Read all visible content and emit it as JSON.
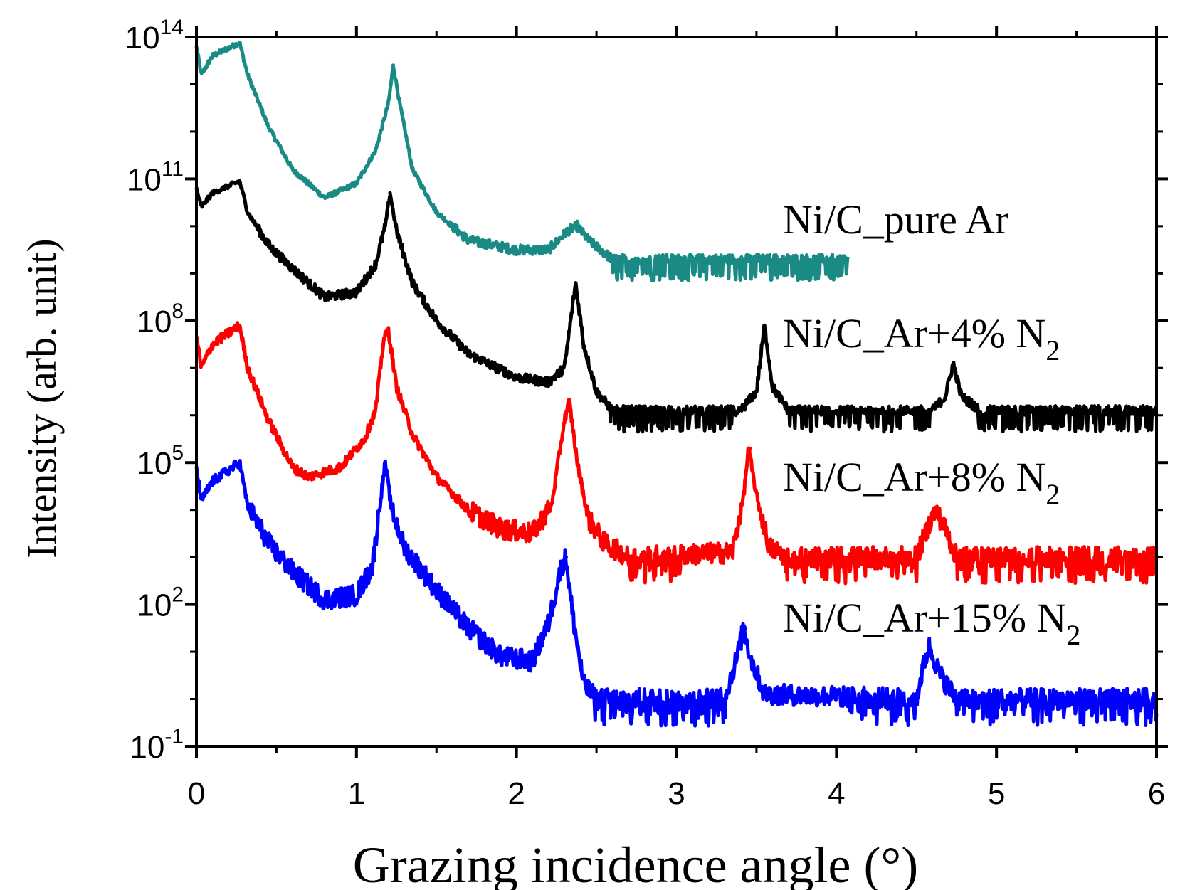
{
  "chart_data": {
    "type": "line",
    "xlabel": "Grazing incidence angle (°)",
    "ylabel": "Intensity (arb. unit)",
    "xlim": [
      0,
      6
    ],
    "ylim_log10": [
      -1,
      14
    ],
    "y_scale": "log",
    "grid": false,
    "x_ticks": [
      "0",
      "1",
      "2",
      "3",
      "4",
      "5",
      "6"
    ],
    "y_ticks": [
      {
        "base": "10",
        "exp": "14",
        "log": 14
      },
      {
        "base": "10",
        "exp": "11",
        "log": 11
      },
      {
        "base": "10",
        "exp": "8",
        "log": 8
      },
      {
        "base": "10",
        "exp": "5",
        "log": 5
      },
      {
        "base": "10",
        "exp": "2",
        "log": 2
      },
      {
        "base": "10",
        "exp": "-1",
        "log": -1
      }
    ],
    "series": [
      {
        "key": "pure-ar",
        "label_main": "Ni/C_pure Ar",
        "label_sub": "",
        "color": "#1a8a85",
        "xmax": 4.07,
        "points_log10": [
          [
            0,
            13.8
          ],
          [
            0.03,
            13.2
          ],
          [
            0.1,
            13.6
          ],
          [
            0.27,
            13.88
          ],
          [
            0.32,
            13.2
          ],
          [
            0.45,
            12.1
          ],
          [
            0.6,
            11.2
          ],
          [
            0.8,
            10.6
          ],
          [
            1.0,
            10.9
          ],
          [
            1.12,
            11.6
          ],
          [
            1.2,
            12.6
          ],
          [
            1.23,
            13.4
          ],
          [
            1.27,
            12.6
          ],
          [
            1.35,
            11.2
          ],
          [
            1.5,
            10.3
          ],
          [
            1.7,
            9.7
          ],
          [
            2.0,
            9.5
          ],
          [
            2.2,
            9.5
          ],
          [
            2.32,
            9.9
          ],
          [
            2.38,
            10.0
          ],
          [
            2.45,
            9.7
          ],
          [
            2.6,
            9.3
          ],
          [
            3.0,
            9.3
          ],
          [
            3.5,
            9.3
          ],
          [
            4.07,
            9.3
          ]
        ],
        "peaks": [
          [
            1.23,
            13.4
          ],
          [
            2.38,
            10.1
          ]
        ]
      },
      {
        "key": "ar-4-n2",
        "label_main": "Ni/C_Ar+4% N",
        "label_sub": "2",
        "color": "#000000",
        "xmax": 6.0,
        "points_log10": [
          [
            0,
            10.8
          ],
          [
            0.03,
            10.4
          ],
          [
            0.1,
            10.7
          ],
          [
            0.27,
            10.95
          ],
          [
            0.32,
            10.3
          ],
          [
            0.45,
            9.6
          ],
          [
            0.6,
            9.1
          ],
          [
            0.8,
            8.5
          ],
          [
            1.0,
            8.6
          ],
          [
            1.12,
            9.2
          ],
          [
            1.18,
            10.0
          ],
          [
            1.21,
            10.7
          ],
          [
            1.25,
            9.9
          ],
          [
            1.35,
            8.8
          ],
          [
            1.5,
            8.0
          ],
          [
            1.7,
            7.3
          ],
          [
            2.0,
            6.8
          ],
          [
            2.2,
            6.7
          ],
          [
            2.3,
            7.0
          ],
          [
            2.37,
            8.8
          ],
          [
            2.42,
            7.5
          ],
          [
            2.5,
            6.5
          ],
          [
            2.6,
            6.1
          ],
          [
            3.4,
            6.1
          ],
          [
            3.5,
            6.5
          ],
          [
            3.55,
            7.9
          ],
          [
            3.6,
            6.6
          ],
          [
            3.7,
            6.1
          ],
          [
            4.6,
            6.1
          ],
          [
            4.68,
            6.4
          ],
          [
            4.73,
            7.1
          ],
          [
            4.78,
            6.4
          ],
          [
            4.9,
            6.1
          ],
          [
            6.0,
            6.1
          ]
        ],
        "peaks": [
          [
            1.21,
            10.7
          ],
          [
            2.37,
            8.8
          ],
          [
            3.55,
            7.9
          ],
          [
            4.73,
            7.1
          ]
        ]
      },
      {
        "key": "ar-8-n2",
        "label_main": "Ni/C_Ar+8% N",
        "label_sub": "2",
        "color": "#ff0000",
        "xmax": 6.0,
        "points_log10": [
          [
            0,
            7.7
          ],
          [
            0.03,
            7.0
          ],
          [
            0.1,
            7.5
          ],
          [
            0.27,
            7.9
          ],
          [
            0.32,
            7.0
          ],
          [
            0.45,
            5.9
          ],
          [
            0.6,
            4.9
          ],
          [
            0.7,
            4.7
          ],
          [
            0.9,
            4.9
          ],
          [
            1.05,
            5.5
          ],
          [
            1.12,
            6.1
          ],
          [
            1.17,
            7.6
          ],
          [
            1.2,
            7.8
          ],
          [
            1.25,
            6.6
          ],
          [
            1.35,
            5.6
          ],
          [
            1.5,
            4.7
          ],
          [
            1.7,
            4.0
          ],
          [
            1.9,
            3.6
          ],
          [
            2.1,
            3.5
          ],
          [
            2.22,
            4.1
          ],
          [
            2.3,
            5.9
          ],
          [
            2.33,
            6.3
          ],
          [
            2.38,
            5.0
          ],
          [
            2.45,
            3.8
          ],
          [
            2.55,
            3.3
          ],
          [
            2.7,
            3.0
          ],
          [
            3.35,
            3.1
          ],
          [
            3.42,
            4.3
          ],
          [
            3.45,
            5.3
          ],
          [
            3.5,
            4.3
          ],
          [
            3.58,
            3.2
          ],
          [
            3.7,
            3.0
          ],
          [
            4.5,
            3.0
          ],
          [
            4.58,
            3.7
          ],
          [
            4.62,
            4.0
          ],
          [
            4.68,
            3.6
          ],
          [
            4.75,
            3.0
          ],
          [
            6.0,
            3.0
          ]
        ],
        "peaks": [
          [
            1.19,
            7.8
          ],
          [
            2.33,
            6.3
          ],
          [
            3.46,
            5.3
          ],
          [
            4.62,
            4.0
          ]
        ]
      },
      {
        "key": "ar-15-n2",
        "label_main": "Ni/C_Ar+15% N",
        "label_sub": "2",
        "color": "#0000ff",
        "xmax": 6.0,
        "points_log10": [
          [
            0,
            4.9
          ],
          [
            0.03,
            4.2
          ],
          [
            0.1,
            4.6
          ],
          [
            0.27,
            5.0
          ],
          [
            0.32,
            4.1
          ],
          [
            0.45,
            3.3
          ],
          [
            0.6,
            2.7
          ],
          [
            0.8,
            2.1
          ],
          [
            1.0,
            2.2
          ],
          [
            1.1,
            2.8
          ],
          [
            1.15,
            4.2
          ],
          [
            1.18,
            5.0
          ],
          [
            1.22,
            4.0
          ],
          [
            1.3,
            3.2
          ],
          [
            1.5,
            2.3
          ],
          [
            1.7,
            1.5
          ],
          [
            1.9,
            0.9
          ],
          [
            2.1,
            0.8
          ],
          [
            2.2,
            1.6
          ],
          [
            2.28,
            2.8
          ],
          [
            2.31,
            3.0
          ],
          [
            2.35,
            1.8
          ],
          [
            2.42,
            0.3
          ],
          [
            2.5,
            0.0
          ],
          [
            3.3,
            0.0
          ],
          [
            3.38,
            0.9
          ],
          [
            3.42,
            1.5
          ],
          [
            3.47,
            0.8
          ],
          [
            3.55,
            0.1
          ],
          [
            4.5,
            0.0
          ],
          [
            4.55,
            0.8
          ],
          [
            4.58,
            1.1
          ],
          [
            4.65,
            0.5
          ],
          [
            4.75,
            0.0
          ],
          [
            6.0,
            0.0
          ]
        ],
        "peaks": [
          [
            1.18,
            5.0
          ],
          [
            2.31,
            3.0
          ],
          [
            3.43,
            1.5
          ],
          [
            4.58,
            1.1
          ]
        ]
      }
    ]
  }
}
